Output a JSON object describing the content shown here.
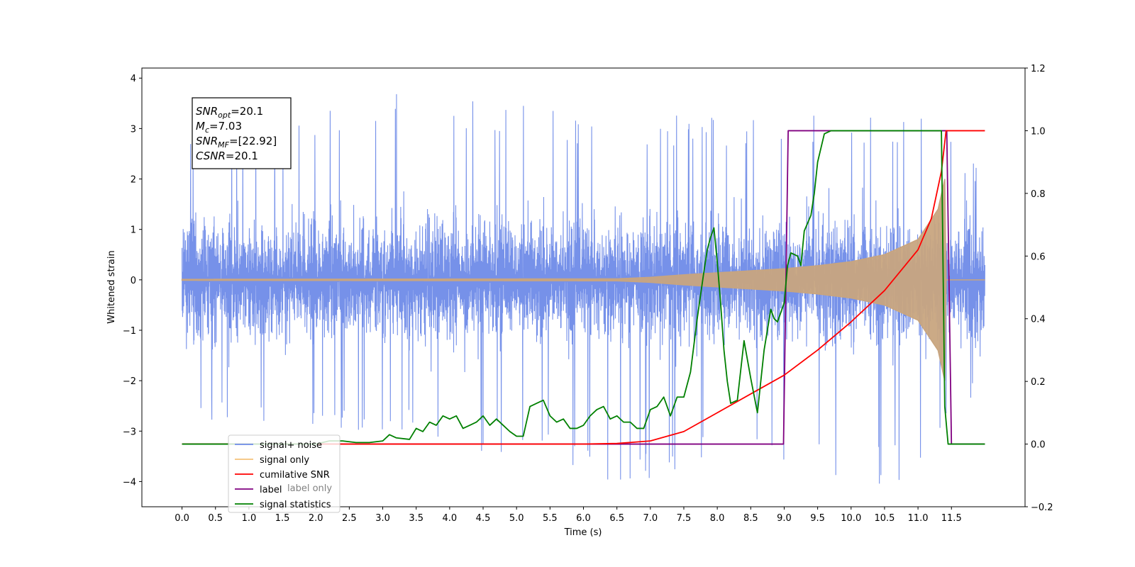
{
  "chart_data": {
    "type": "line",
    "xlabel": "Time (s)",
    "ylabel": "Whitened strain",
    "x_ticks": [
      "0.0",
      "0.5",
      "1.0",
      "1.5",
      "2.0",
      "2.5",
      "3.0",
      "3.5",
      "4.0",
      "4.5",
      "5.0",
      "5.5",
      "6.0",
      "6.5",
      "7.0",
      "7.5",
      "8.0",
      "8.5",
      "9.0",
      "9.5",
      "10.0",
      "10.5",
      "11.0",
      "11.5"
    ],
    "xlim": [
      -0.6,
      12.6
    ],
    "ylim_left": [
      -4.5,
      4.2
    ],
    "y_ticks_left": [
      "−4",
      "−3",
      "−2",
      "−1",
      "0",
      "1",
      "2",
      "3",
      "4"
    ],
    "ylim_right": [
      -0.2,
      1.2
    ],
    "y_ticks_right": [
      "−0.2",
      "0.0",
      "0.2",
      "0.4",
      "0.6",
      "0.8",
      "1.0",
      "1.2"
    ],
    "info_box": {
      "lines": [
        {
          "main": "SNR",
          "sub": "opt",
          "rest": "=20.1"
        },
        {
          "main": "M",
          "sub": "c",
          "rest": "=7.03"
        },
        {
          "main": "SNR",
          "sub": "MF",
          "rest": "=[22.92]"
        },
        {
          "main": "CSNR",
          "sub": "",
          "rest": "=20.1"
        }
      ]
    },
    "legend": {
      "position": "lower-left",
      "entries": [
        {
          "label": "signal+ noise",
          "color": "#6f8be8"
        },
        {
          "label": "signal only",
          "color": "#f5c27a"
        },
        {
          "label": "cumilative SNR",
          "color": "#ff0000"
        },
        {
          "label": "label",
          "color": "#800080"
        },
        {
          "label": "signal statistics",
          "color": "#008000"
        }
      ]
    },
    "background_texts": [
      {
        "text": "label only"
      }
    ],
    "series": [
      {
        "name": "signal+ noise",
        "axis": "left",
        "color": "#6f8be8",
        "description_x": [
          0.0,
          12.0
        ],
        "noise_envelope": [
          [
            0.0,
            -2.9,
            3.1
          ],
          [
            3.3,
            -3.1,
            3.8
          ],
          [
            6.4,
            -4.0,
            3.3
          ],
          [
            8.7,
            -3.8,
            3.3
          ],
          [
            10.0,
            -4.1,
            3.3
          ],
          [
            11.0,
            -4.1,
            3.3
          ],
          [
            12.0,
            -2.0,
            2.3
          ]
        ]
      },
      {
        "name": "signal only",
        "axis": "left",
        "color": "#c8a57f",
        "x": [
          0.0,
          6.5,
          7.0,
          7.5,
          8.0,
          8.5,
          9.0,
          9.5,
          10.0,
          10.5,
          11.0,
          11.3,
          11.4,
          11.42,
          12.0
        ],
        "amplitude": [
          0.01,
          0.02,
          0.05,
          0.1,
          0.14,
          0.18,
          0.22,
          0.28,
          0.36,
          0.5,
          0.8,
          1.4,
          2.0,
          0.0,
          0.0
        ]
      },
      {
        "name": "cumilative SNR",
        "axis": "right",
        "color": "#ff0000",
        "x": [
          0.0,
          6.0,
          6.5,
          7.0,
          7.5,
          8.0,
          8.5,
          9.0,
          9.5,
          10.0,
          10.5,
          11.0,
          11.2,
          11.35,
          11.42,
          12.0
        ],
        "y": [
          0.0,
          0.0,
          0.002,
          0.01,
          0.04,
          0.1,
          0.16,
          0.22,
          0.3,
          0.39,
          0.49,
          0.62,
          0.72,
          0.87,
          1.0,
          1.0
        ]
      },
      {
        "name": "label",
        "axis": "right",
        "color": "#800080",
        "x": [
          0.0,
          8.99,
          9.06,
          11.43,
          11.5,
          12.0
        ],
        "y": [
          0.0,
          0.0,
          1.0,
          1.0,
          0.0,
          0.0
        ]
      },
      {
        "name": "signal statistics",
        "axis": "right",
        "color": "#008000",
        "x": [
          0.0,
          2.0,
          2.2,
          2.4,
          2.6,
          2.8,
          3.0,
          3.1,
          3.2,
          3.4,
          3.5,
          3.6,
          3.7,
          3.8,
          3.9,
          4.0,
          4.1,
          4.2,
          4.3,
          4.4,
          4.5,
          4.6,
          4.7,
          4.8,
          4.9,
          5.0,
          5.1,
          5.2,
          5.3,
          5.4,
          5.5,
          5.6,
          5.7,
          5.8,
          5.9,
          6.0,
          6.1,
          6.2,
          6.3,
          6.4,
          6.5,
          6.6,
          6.7,
          6.8,
          6.9,
          7.0,
          7.1,
          7.2,
          7.3,
          7.4,
          7.5,
          7.6,
          7.7,
          7.8,
          7.85,
          7.9,
          7.95,
          8.0,
          8.05,
          8.1,
          8.15,
          8.2,
          8.3,
          8.4,
          8.5,
          8.6,
          8.7,
          8.8,
          8.85,
          8.9,
          9.0,
          9.05,
          9.1,
          9.2,
          9.25,
          9.3,
          9.4,
          9.45,
          9.5,
          9.6,
          9.7,
          11.35,
          11.4,
          11.45,
          11.5,
          12.0
        ],
        "y": [
          0.0,
          0.0,
          0.01,
          0.01,
          0.005,
          0.005,
          0.01,
          0.03,
          0.02,
          0.015,
          0.05,
          0.04,
          0.07,
          0.06,
          0.09,
          0.08,
          0.09,
          0.05,
          0.06,
          0.07,
          0.09,
          0.06,
          0.08,
          0.06,
          0.04,
          0.025,
          0.025,
          0.12,
          0.13,
          0.14,
          0.09,
          0.07,
          0.08,
          0.05,
          0.05,
          0.06,
          0.09,
          0.11,
          0.12,
          0.08,
          0.09,
          0.07,
          0.07,
          0.05,
          0.05,
          0.11,
          0.12,
          0.15,
          0.09,
          0.15,
          0.15,
          0.23,
          0.4,
          0.55,
          0.62,
          0.66,
          0.69,
          0.58,
          0.45,
          0.3,
          0.2,
          0.13,
          0.14,
          0.33,
          0.21,
          0.1,
          0.3,
          0.43,
          0.4,
          0.39,
          0.45,
          0.57,
          0.61,
          0.6,
          0.57,
          0.68,
          0.73,
          0.8,
          0.9,
          0.99,
          1.0,
          1.0,
          0.12,
          0.0,
          0.0,
          0.0
        ]
      }
    ]
  }
}
